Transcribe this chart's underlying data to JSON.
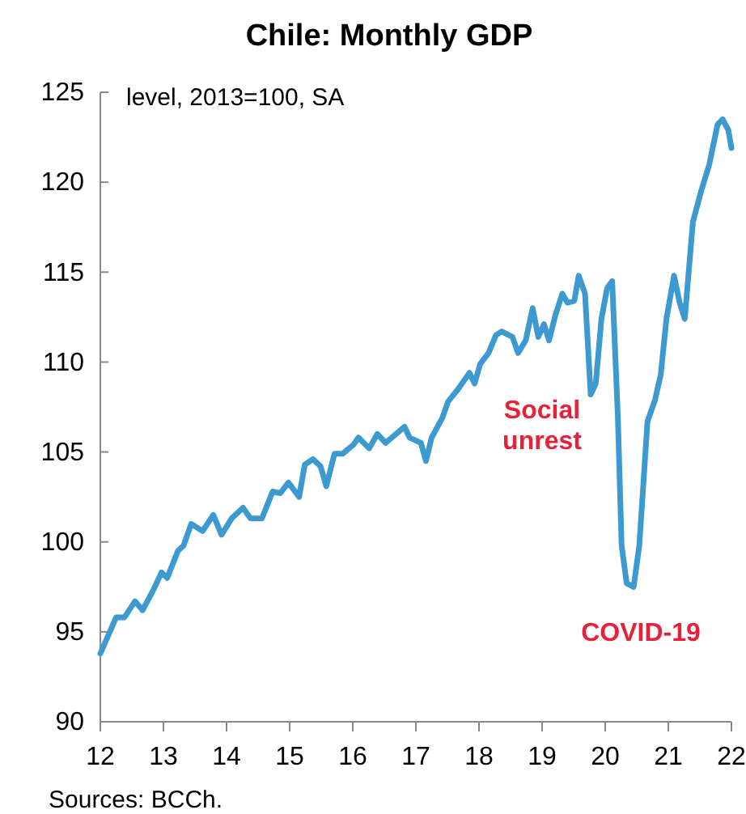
{
  "chart_data": {
    "type": "line",
    "title": "Chile: Monthly GDP",
    "ylabel": "level, 2013=100, SA",
    "x": [
      12.0,
      12.25,
      12.38,
      12.55,
      12.67,
      12.85,
      12.97,
      13.06,
      13.23,
      13.32,
      13.44,
      13.62,
      13.79,
      13.92,
      14.08,
      14.26,
      14.38,
      14.56,
      14.73,
      14.85,
      14.98,
      15.15,
      15.24,
      15.37,
      15.49,
      15.58,
      15.71,
      15.84,
      16.01,
      16.09,
      16.26,
      16.39,
      16.52,
      16.82,
      16.9,
      17.08,
      17.16,
      17.25,
      17.42,
      17.51,
      17.67,
      17.85,
      17.93,
      18.02,
      18.15,
      18.27,
      18.36,
      18.53,
      18.62,
      18.74,
      18.85,
      18.94,
      19.03,
      19.11,
      19.21,
      19.32,
      19.4,
      19.51,
      19.58,
      19.68,
      19.77,
      19.85,
      19.94,
      20.03,
      20.11,
      20.2,
      20.26,
      20.34,
      20.45,
      20.54,
      20.67,
      20.79,
      20.88,
      20.97,
      21.09,
      21.18,
      21.26,
      21.39,
      21.52,
      21.65,
      21.78,
      21.86,
      21.95,
      22.0
    ],
    "series": [
      {
        "color": "#3d9ad1",
        "values": [
          93.8,
          95.8,
          95.8,
          96.7,
          96.2,
          97.4,
          98.3,
          98.0,
          99.5,
          99.8,
          101.0,
          100.6,
          101.5,
          100.4,
          101.3,
          101.9,
          101.3,
          101.3,
          102.8,
          102.7,
          103.3,
          102.5,
          104.3,
          104.6,
          104.2,
          103.1,
          104.9,
          104.9,
          105.4,
          105.8,
          105.2,
          106.0,
          105.5,
          106.4,
          105.8,
          105.5,
          104.5,
          105.8,
          106.9,
          107.8,
          108.5,
          109.4,
          108.8,
          109.9,
          110.5,
          111.5,
          111.7,
          111.4,
          110.5,
          111.2,
          113.0,
          111.4,
          112.1,
          111.2,
          112.6,
          113.8,
          113.3,
          113.4,
          114.8,
          113.8,
          108.2,
          108.8,
          112.4,
          114.1,
          114.5,
          107.0,
          99.8,
          97.7,
          97.5,
          99.8,
          106.7,
          107.9,
          109.3,
          112.4,
          114.8,
          113.3,
          112.4,
          117.8,
          119.5,
          121.0,
          123.2,
          123.5,
          122.9,
          121.9
        ]
      }
    ],
    "xlim": [
      12,
      22
    ],
    "xticks": [
      12,
      13,
      14,
      15,
      16,
      17,
      18,
      19,
      20,
      21,
      22
    ],
    "ylim": [
      90,
      125
    ],
    "yticks": [
      90,
      95,
      100,
      105,
      110,
      115,
      120,
      125
    ],
    "grid": false,
    "marker": "none",
    "line_style": "solid",
    "annotations": [
      "Social unrest",
      "COVID-19",
      "Sources: BCCh."
    ]
  }
}
